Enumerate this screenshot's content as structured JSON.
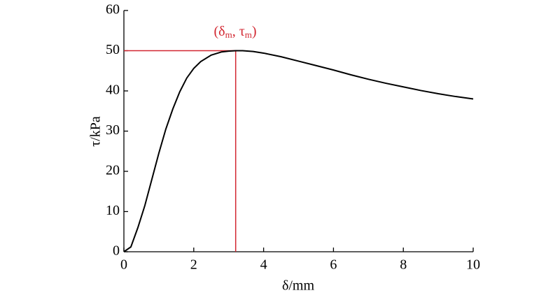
{
  "chart_data": {
    "type": "line",
    "x": [
      0,
      0.2,
      0.4,
      0.6,
      0.8,
      1.0,
      1.2,
      1.4,
      1.6,
      1.8,
      2.0,
      2.2,
      2.5,
      2.8,
      3.0,
      3.2,
      3.4,
      3.7,
      4.0,
      4.5,
      5,
      5.5,
      6,
      6.5,
      7,
      7.5,
      8,
      8.5,
      9,
      9.5,
      10
    ],
    "series": [
      {
        "color": "#000000",
        "values": [
          0,
          1.2,
          6,
          11.5,
          18,
          24.5,
          30.5,
          35.5,
          39.8,
          43.2,
          45.6,
          47.3,
          48.9,
          49.7,
          49.9,
          50,
          50,
          49.8,
          49.4,
          48.5,
          47.4,
          46.3,
          45.2,
          44,
          42.9,
          41.9,
          41,
          40.1,
          39.3,
          38.6,
          38
        ]
      }
    ],
    "xlabel": "δ/mm",
    "ylabel": "τ/kPa",
    "xlim": [
      0,
      10
    ],
    "xticks": [
      0,
      2,
      4,
      6,
      8,
      10
    ],
    "ylim": [
      0,
      60
    ],
    "yticks": [
      0,
      10,
      20,
      30,
      40,
      50,
      60
    ],
    "marker": {
      "x": 3.2,
      "y": 50,
      "color": "#d22630",
      "label_parts": [
        "(δ",
        "m",
        ", τ",
        "m",
        ")"
      ]
    }
  }
}
